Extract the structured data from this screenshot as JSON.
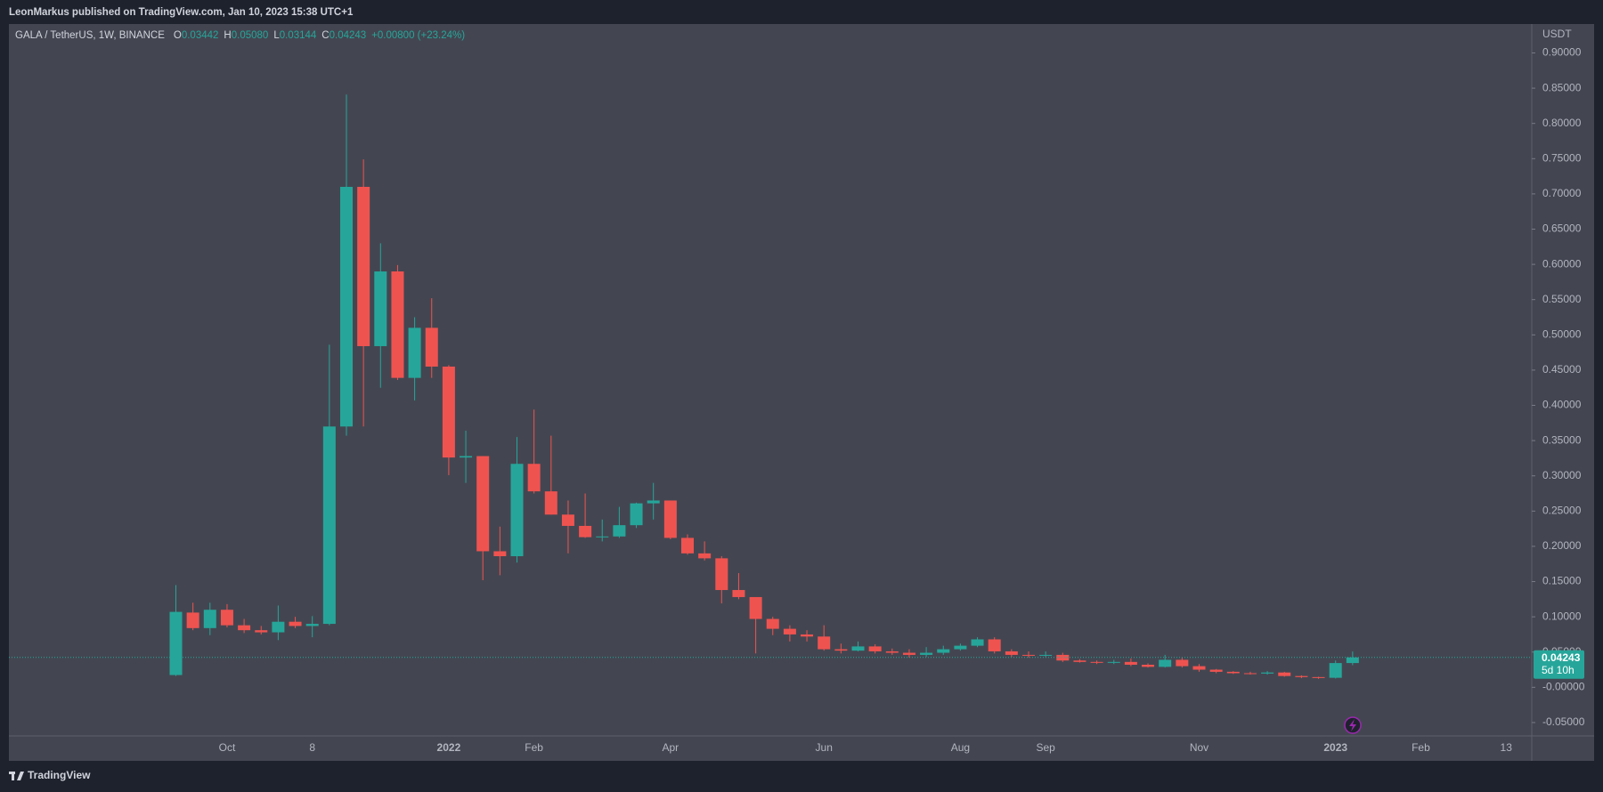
{
  "header": {
    "publisher": "LeonMarkus published on TradingView.com, Jan 10, 2023 15:38 UTC+1",
    "brand": "TradingView"
  },
  "chart_data": {
    "type": "candlestick",
    "symbol": "GALA / TetherUS, 1W, BINANCE",
    "ohlc_header": [
      {
        "key": "O",
        "value": "0.03442"
      },
      {
        "key": "H",
        "value": "0.05080"
      },
      {
        "key": "L",
        "value": "0.03144"
      },
      {
        "key": "C",
        "value": "0.04243"
      }
    ],
    "change": "+0.00800 (+23.24%)",
    "y_unit": "USDT",
    "up_color": "#26a69a",
    "down_color": "#ef5350",
    "grid": false,
    "categories": [
      null,
      null,
      null,
      "Oct",
      null,
      null,
      null,
      null,
      "8",
      null,
      null,
      null,
      null,
      null,
      null,
      null,
      "2022",
      null,
      null,
      null,
      null,
      "Feb",
      null,
      null,
      null,
      null,
      null,
      null,
      null,
      "Apr",
      null,
      null,
      null,
      null,
      null,
      null,
      null,
      null,
      "Jun",
      null,
      null,
      null,
      null,
      null,
      null,
      null,
      "Aug",
      null,
      null,
      null,
      null,
      "Sep",
      null,
      null,
      null,
      null,
      null,
      null,
      null,
      null,
      "Nov",
      null,
      null,
      null,
      null,
      null,
      null,
      null,
      "2023",
      null,
      null,
      null,
      null,
      "Feb",
      null,
      null,
      null,
      null,
      "13",
      null
    ],
    "open": [
      0.0174,
      0.106,
      0.084,
      0.11,
      0.088,
      0.081,
      0.078,
      0.093,
      0.087,
      0.09,
      0.37,
      0.71,
      0.484,
      0.59,
      0.439,
      0.51,
      0.455,
      0.326,
      0.328,
      0.193,
      0.186,
      0.317,
      0.278,
      0.245,
      0.229,
      0.213,
      0.214,
      0.23,
      0.261,
      0.265,
      0.212,
      0.19,
      0.183,
      0.138,
      0.128,
      0.097,
      0.083,
      0.075,
      0.072,
      0.054,
      0.052,
      0.058,
      0.051,
      0.049,
      0.046,
      0.049,
      0.054,
      0.059,
      0.068,
      0.051,
      0.046,
      0.045,
      0.046,
      0.038,
      0.036,
      0.035,
      0.036,
      0.032,
      0.029,
      0.039,
      0.03,
      0.025,
      0.022,
      0.02,
      0.0195,
      0.021,
      0.016,
      0.0145,
      0.0135,
      0.03442,
      null,
      null,
      null,
      null,
      null,
      null,
      null,
      null,
      null,
      null
    ],
    "high": [
      0.145,
      0.12,
      0.12,
      0.118,
      0.097,
      0.087,
      0.116,
      0.1,
      0.101,
      0.486,
      0.841,
      0.749,
      0.63,
      0.599,
      0.525,
      0.552,
      0.457,
      0.364,
      0.328,
      0.228,
      0.355,
      0.394,
      0.357,
      0.265,
      0.275,
      0.238,
      0.256,
      0.262,
      0.29,
      0.265,
      0.217,
      0.207,
      0.186,
      0.162,
      0.128,
      0.1,
      0.088,
      0.081,
      0.088,
      0.062,
      0.065,
      0.061,
      0.055,
      0.054,
      0.057,
      0.059,
      0.062,
      0.071,
      0.071,
      0.054,
      0.051,
      0.051,
      0.049,
      0.04,
      0.038,
      0.039,
      0.041,
      0.034,
      0.046,
      0.042,
      0.033,
      0.026,
      0.023,
      0.022,
      0.023,
      0.022,
      0.017,
      0.015,
      0.038,
      0.0508,
      null,
      null,
      null,
      null,
      null,
      null,
      null,
      null,
      null,
      null
    ],
    "low": [
      0.016,
      0.081,
      0.074,
      0.085,
      0.077,
      0.075,
      0.067,
      0.084,
      0.071,
      0.088,
      0.357,
      0.37,
      0.425,
      0.436,
      0.407,
      0.439,
      0.301,
      0.29,
      0.152,
      0.159,
      0.177,
      0.275,
      0.245,
      0.19,
      0.212,
      0.207,
      0.212,
      0.226,
      0.238,
      0.21,
      0.188,
      0.18,
      0.119,
      0.125,
      0.048,
      0.074,
      0.065,
      0.065,
      0.052,
      0.048,
      0.051,
      0.048,
      0.046,
      0.042,
      0.043,
      0.046,
      0.052,
      0.057,
      0.048,
      0.043,
      0.042,
      0.043,
      0.036,
      0.035,
      0.033,
      0.033,
      0.03,
      0.028,
      0.028,
      0.028,
      0.022,
      0.02,
      0.019,
      0.018,
      0.018,
      0.015,
      0.013,
      0.012,
      0.0125,
      0.03144,
      null,
      null,
      null,
      null,
      null,
      null,
      null,
      null,
      null,
      null
    ],
    "close": [
      0.107,
      0.084,
      0.11,
      0.088,
      0.081,
      0.078,
      0.093,
      0.087,
      0.09,
      0.37,
      0.71,
      0.484,
      0.59,
      0.439,
      0.51,
      0.455,
      0.326,
      0.328,
      0.193,
      0.186,
      0.317,
      0.278,
      0.245,
      0.229,
      0.213,
      0.214,
      0.23,
      0.261,
      0.265,
      0.212,
      0.19,
      0.183,
      0.138,
      0.128,
      0.097,
      0.083,
      0.075,
      0.072,
      0.054,
      0.052,
      0.058,
      0.051,
      0.049,
      0.046,
      0.049,
      0.054,
      0.059,
      0.068,
      0.051,
      0.046,
      0.045,
      0.046,
      0.038,
      0.036,
      0.035,
      0.036,
      0.032,
      0.029,
      0.039,
      0.03,
      0.025,
      0.022,
      0.02,
      0.0195,
      0.021,
      0.016,
      0.0145,
      0.0135,
      0.0344,
      0.04243,
      null,
      null,
      null,
      null,
      null,
      null,
      null,
      null,
      null,
      null
    ],
    "ylim": [
      -0.069,
      0.941
    ],
    "yticks": [
      {
        "value": 0.9,
        "label": "0.90000"
      },
      {
        "value": 0.85,
        "label": "0.85000"
      },
      {
        "value": 0.8,
        "label": "0.80000"
      },
      {
        "value": 0.75,
        "label": "0.75000"
      },
      {
        "value": 0.7,
        "label": "0.70000"
      },
      {
        "value": 0.65,
        "label": "0.65000"
      },
      {
        "value": 0.6,
        "label": "0.60000"
      },
      {
        "value": 0.55,
        "label": "0.55000"
      },
      {
        "value": 0.5,
        "label": "0.50000"
      },
      {
        "value": 0.45,
        "label": "0.45000"
      },
      {
        "value": 0.4,
        "label": "0.40000"
      },
      {
        "value": 0.35,
        "label": "0.35000"
      },
      {
        "value": 0.3,
        "label": "0.30000"
      },
      {
        "value": 0.25,
        "label": "0.25000"
      },
      {
        "value": 0.2,
        "label": "0.20000"
      },
      {
        "value": 0.15,
        "label": "0.15000"
      },
      {
        "value": 0.1,
        "label": "0.10000"
      },
      {
        "value": 0.05,
        "label": "0.05000"
      },
      {
        "value": 0,
        "label": "-0.00000"
      },
      {
        "value": -0.05,
        "label": "-0.05000"
      }
    ],
    "price_line": {
      "value": 0.04243,
      "label": "0.04243",
      "countdown": "5d 10h",
      "color": "#26a69a"
    }
  }
}
